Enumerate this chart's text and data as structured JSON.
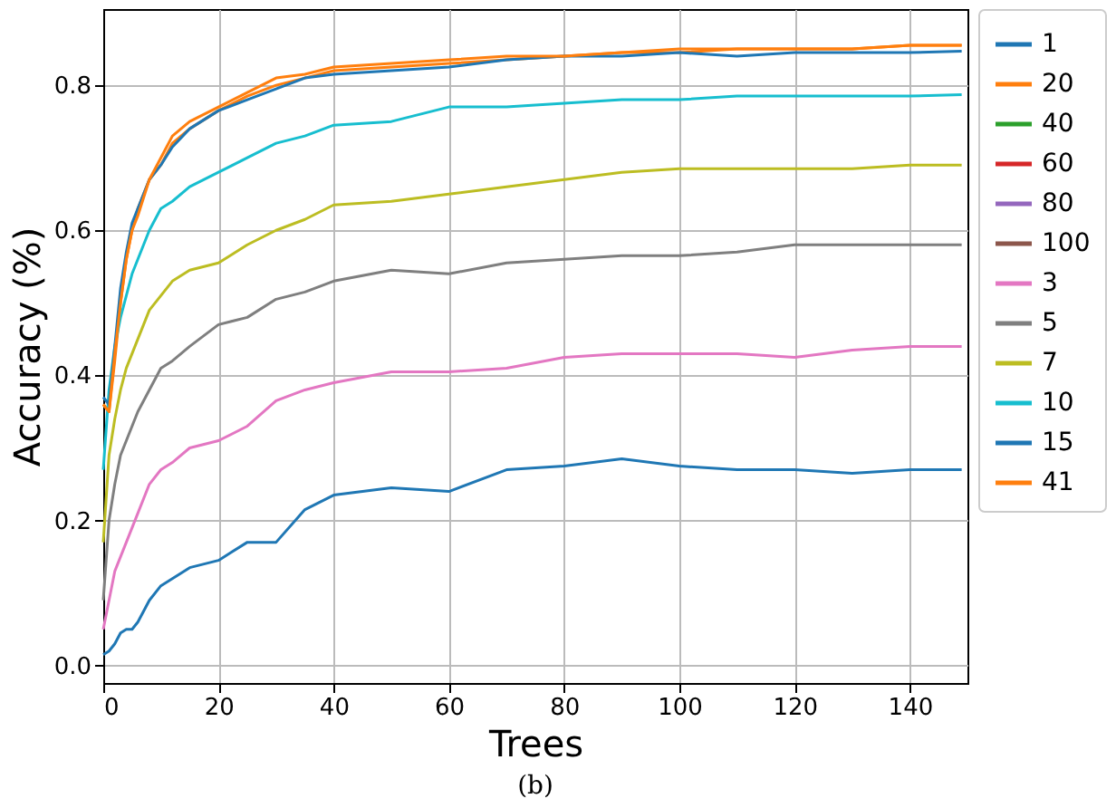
{
  "chart_data": {
    "type": "line",
    "xlabel": "Trees",
    "ylabel": "Accuracy (%)",
    "x": [
      0,
      1,
      2,
      3,
      4,
      5,
      6,
      8,
      10,
      12,
      15,
      20,
      25,
      30,
      35,
      40,
      50,
      60,
      70,
      80,
      90,
      100,
      110,
      120,
      130,
      140,
      149
    ],
    "xlim": [
      0,
      150
    ],
    "xticks": [
      0,
      20,
      40,
      60,
      80,
      100,
      120,
      140
    ],
    "ylim": [
      -0.024,
      0.905
    ],
    "yticks": [
      {
        "value": 0,
        "label": "0.0"
      },
      {
        "value": 0.2,
        "label": "0.2"
      },
      {
        "value": 0.4,
        "label": "0.4"
      },
      {
        "value": 0.6,
        "label": "0.6"
      },
      {
        "value": 0.8,
        "label": "0.8"
      }
    ],
    "grid": true,
    "legend": "right",
    "line_style": "solid",
    "marker": "none",
    "annotations": [
      "(b)"
    ],
    "series": [
      {
        "name": "1",
        "color": "#1f77b4",
        "values": [
          0.015,
          0.02,
          0.03,
          0.045,
          0.05,
          0.05,
          0.06,
          0.09,
          0.11,
          0.12,
          0.135,
          0.145,
          0.17,
          0.17,
          0.215,
          0.235,
          0.245,
          0.24,
          0.27,
          0.275,
          0.285,
          0.275,
          0.27,
          0.27,
          0.265,
          0.27,
          0.27
        ]
      },
      {
        "name": "20",
        "color": "#ff7f0e",
        "values": [
          0.36,
          0.35,
          0.42,
          0.5,
          0.56,
          0.6,
          0.63,
          0.67,
          0.69,
          0.72,
          0.74,
          0.765,
          0.785,
          0.8,
          0.81,
          0.82,
          0.825,
          0.83,
          0.835,
          0.84,
          0.845,
          0.845,
          0.85,
          0.85,
          0.85,
          0.855,
          0.855
        ]
      },
      {
        "name": "40",
        "color": "#2ca02c",
        "values": [
          null,
          null,
          null,
          null,
          null,
          null,
          null,
          null,
          null,
          null,
          null,
          null,
          null,
          null,
          null,
          null,
          null,
          null,
          null,
          null,
          null,
          null,
          null,
          null,
          null,
          null,
          null
        ]
      },
      {
        "name": "60",
        "color": "#d62728",
        "values": [
          null,
          null,
          null,
          null,
          null,
          null,
          null,
          null,
          null,
          null,
          null,
          null,
          null,
          null,
          null,
          null,
          null,
          null,
          null,
          null,
          null,
          null,
          null,
          null,
          null,
          null,
          null
        ]
      },
      {
        "name": "80",
        "color": "#9467bd",
        "values": [
          null,
          null,
          null,
          null,
          null,
          null,
          null,
          null,
          null,
          null,
          null,
          null,
          null,
          null,
          null,
          null,
          null,
          null,
          null,
          null,
          null,
          null,
          null,
          null,
          null,
          null,
          null
        ]
      },
      {
        "name": "100",
        "color": "#8c564b",
        "values": [
          null,
          null,
          null,
          null,
          null,
          null,
          null,
          null,
          null,
          null,
          null,
          null,
          null,
          null,
          null,
          null,
          null,
          null,
          null,
          null,
          null,
          null,
          null,
          null,
          null,
          null,
          null
        ]
      },
      {
        "name": "3",
        "color": "#e377c2",
        "values": [
          0.05,
          0.09,
          0.13,
          0.15,
          0.17,
          0.19,
          0.21,
          0.25,
          0.27,
          0.28,
          0.3,
          0.31,
          0.33,
          0.365,
          0.38,
          0.39,
          0.405,
          0.405,
          0.41,
          0.425,
          0.43,
          0.43,
          0.43,
          0.425,
          0.435,
          0.44,
          0.44
        ]
      },
      {
        "name": "5",
        "color": "#7f7f7f",
        "values": [
          0.09,
          0.2,
          0.25,
          0.29,
          0.31,
          0.33,
          0.35,
          0.38,
          0.41,
          0.42,
          0.44,
          0.47,
          0.48,
          0.505,
          0.515,
          0.53,
          0.545,
          0.54,
          0.555,
          0.56,
          0.565,
          0.565,
          0.57,
          0.58,
          0.58,
          0.58,
          0.58
        ]
      },
      {
        "name": "7",
        "color": "#bcbd22",
        "values": [
          0.17,
          0.29,
          0.34,
          0.38,
          0.41,
          0.43,
          0.45,
          0.49,
          0.51,
          0.53,
          0.545,
          0.555,
          0.58,
          0.6,
          0.615,
          0.635,
          0.64,
          0.65,
          0.66,
          0.67,
          0.68,
          0.685,
          0.685,
          0.685,
          0.685,
          0.69,
          0.69
        ]
      },
      {
        "name": "10",
        "color": "#17becf",
        "values": [
          0.27,
          0.38,
          0.44,
          0.48,
          0.51,
          0.54,
          0.56,
          0.6,
          0.63,
          0.64,
          0.66,
          0.68,
          0.7,
          0.72,
          0.73,
          0.745,
          0.75,
          0.77,
          0.77,
          0.775,
          0.78,
          0.78,
          0.785,
          0.785,
          0.785,
          0.785,
          0.787
        ]
      },
      {
        "name": "15",
        "color": "#1f77b4",
        "values": [
          0.37,
          0.36,
          0.44,
          0.52,
          0.57,
          0.61,
          0.63,
          0.67,
          0.69,
          0.715,
          0.74,
          0.765,
          0.78,
          0.795,
          0.81,
          0.815,
          0.82,
          0.825,
          0.835,
          0.84,
          0.84,
          0.845,
          0.84,
          0.845,
          0.845,
          0.845,
          0.847
        ]
      },
      {
        "name": "41",
        "color": "#ff7f0e",
        "values": [
          0.36,
          0.35,
          0.43,
          0.5,
          0.56,
          0.6,
          0.62,
          0.67,
          0.7,
          0.73,
          0.75,
          0.77,
          0.79,
          0.81,
          0.815,
          0.825,
          0.83,
          0.835,
          0.84,
          0.84,
          0.845,
          0.85,
          0.85,
          0.85,
          0.85,
          0.855,
          0.855
        ]
      }
    ]
  }
}
